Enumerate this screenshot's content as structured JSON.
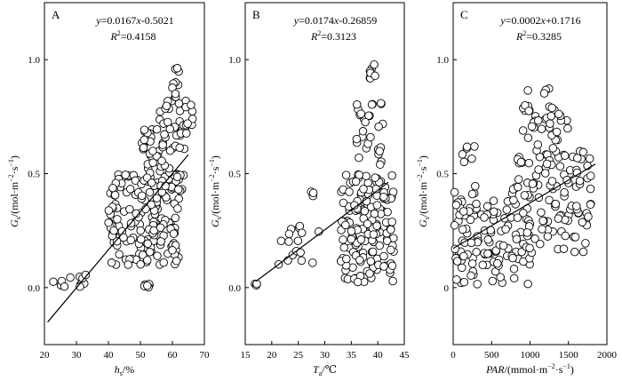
{
  "chart_data": [
    {
      "type": "scatter",
      "panel": "A",
      "equation_parts": [
        "y",
        "=0.0167",
        "x",
        "-0.5021"
      ],
      "r2_parts": [
        "R",
        "2",
        "=0.4158"
      ],
      "slope": 0.0167,
      "intercept": -0.5021,
      "fit_x": [
        21,
        65
      ],
      "xlim": [
        20,
        70
      ],
      "ylim": [
        -0.25,
        1.25
      ],
      "xticks": [
        20,
        30,
        40,
        50,
        60,
        70
      ],
      "yticks": [
        0.0,
        0.5,
        1.0
      ],
      "xlabel_parts": [
        "h",
        "s",
        "/%"
      ],
      "ylabel_parts": [
        "G",
        "s",
        "/(mol·m",
        "−2",
        "·s",
        "−1",
        ")"
      ],
      "ytick_labels": [
        "0.0",
        "0.5",
        "1.0"
      ],
      "clusters": [
        {
          "n": 12,
          "x": [
            22,
            35
          ],
          "y": [
            0.0,
            0.06
          ]
        },
        {
          "n": 160,
          "x": [
            40,
            62
          ],
          "y": [
            0.1,
            0.5
          ]
        },
        {
          "n": 70,
          "x": [
            50,
            64
          ],
          "y": [
            0.4,
            0.7
          ]
        },
        {
          "n": 28,
          "x": [
            56,
            67
          ],
          "y": [
            0.67,
            0.82
          ]
        },
        {
          "n": 10,
          "x": [
            60,
            62
          ],
          "y": [
            0.82,
            0.98
          ]
        },
        {
          "n": 8,
          "x": [
            51,
            53
          ],
          "y": [
            0.0,
            0.02
          ]
        }
      ]
    },
    {
      "type": "scatter",
      "panel": "B",
      "equation_parts": [
        "y",
        "=0.0174",
        "x",
        "-0.26859"
      ],
      "r2_parts": [
        "R",
        "2",
        "=0.3123"
      ],
      "slope": 0.0174,
      "intercept": -0.26859,
      "fit_x": [
        17,
        42
      ],
      "xlim": [
        15,
        45
      ],
      "ylim": [
        -0.25,
        1.25
      ],
      "xticks": [
        15,
        20,
        25,
        30,
        35,
        40,
        45
      ],
      "yticks": [
        0.0,
        0.5,
        1.0
      ],
      "xlabel_parts": [
        "T",
        "a",
        "/℃"
      ],
      "ylabel_parts": [
        "G",
        "s",
        "/(mol·m",
        "−2",
        "·s",
        "−1",
        ")"
      ],
      "ytick_labels": [
        "0.0",
        "0.5",
        "1.0"
      ],
      "clusters": [
        {
          "n": 3,
          "x": [
            16.8,
            17.2
          ],
          "y": [
            0.0,
            0.02
          ]
        },
        {
          "n": 16,
          "x": [
            21,
            29
          ],
          "y": [
            0.1,
            0.27
          ]
        },
        {
          "n": 3,
          "x": [
            27,
            28
          ],
          "y": [
            0.4,
            0.44
          ]
        },
        {
          "n": 150,
          "x": [
            33,
            43
          ],
          "y": [
            0.02,
            0.5
          ]
        },
        {
          "n": 28,
          "x": [
            36,
            41
          ],
          "y": [
            0.5,
            0.82
          ]
        },
        {
          "n": 8,
          "x": [
            38.5,
            40
          ],
          "y": [
            0.85,
            0.98
          ]
        }
      ]
    },
    {
      "type": "scatter",
      "panel": "C",
      "equation_parts": [
        "y",
        "=0.0002",
        "x",
        "+0.1716"
      ],
      "r2_parts": [
        "R",
        "2",
        "=0.3285"
      ],
      "slope": 0.0002,
      "intercept": 0.1716,
      "fit_x": [
        0,
        1850
      ],
      "xlim": [
        0,
        2000
      ],
      "ylim": [
        -0.25,
        1.25
      ],
      "xticks": [
        0,
        500,
        1000,
        1500,
        2000
      ],
      "yticks": [
        0.0,
        0.5,
        1.0
      ],
      "xlabel_parts": [
        "PAR",
        "/(mmol·m",
        "−2",
        "·s",
        "−1",
        ")"
      ],
      "ylabel_parts": [
        "G",
        "s",
        "/(mol·m",
        "−2",
        "·s",
        "−1",
        ")"
      ],
      "ytick_labels": [
        "0",
        "0.5",
        "1.0"
      ],
      "clusters": [
        {
          "n": 120,
          "x": [
            0,
            1000
          ],
          "y": [
            0.0,
            0.45
          ]
        },
        {
          "n": 110,
          "x": [
            800,
            1800
          ],
          "y": [
            0.15,
            0.6
          ]
        },
        {
          "n": 35,
          "x": [
            900,
            1500
          ],
          "y": [
            0.6,
            0.82
          ]
        },
        {
          "n": 4,
          "x": [
            950,
            1300
          ],
          "y": [
            0.85,
            0.92
          ]
        },
        {
          "n": 6,
          "x": [
            100,
            300
          ],
          "y": [
            0.55,
            0.62
          ]
        }
      ]
    }
  ]
}
